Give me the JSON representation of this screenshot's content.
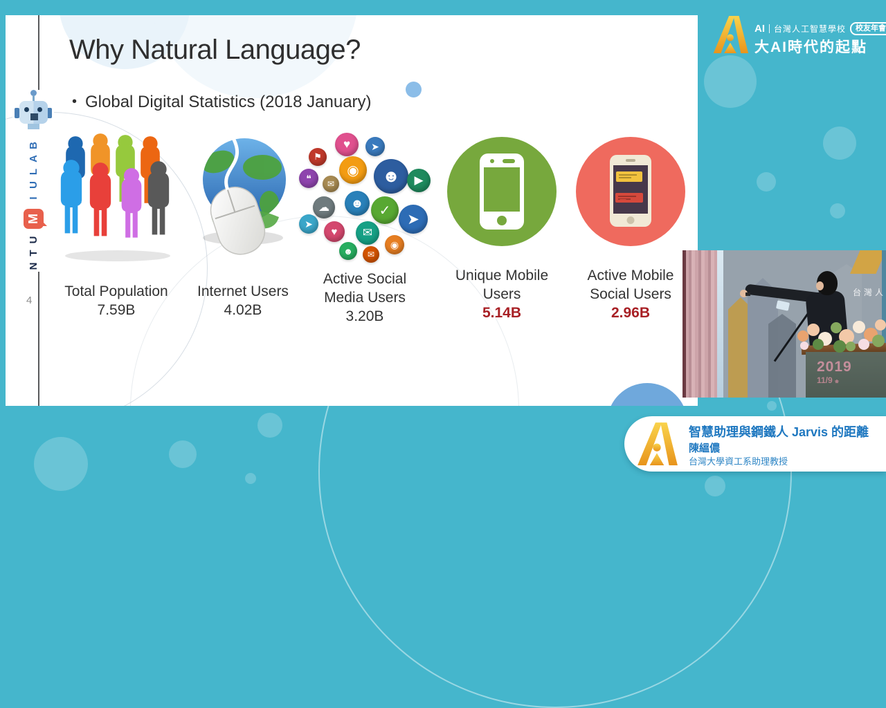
{
  "slide": {
    "title": "Why Natural Language?",
    "bullet": "Global Digital Statistics (2018 January)",
    "bullet_marker": "•",
    "slide_number": "4",
    "stats": [
      {
        "icon": "population-people-icon",
        "label1": "Total Population",
        "label2": "",
        "value": "7.59B",
        "highlight": false
      },
      {
        "icon": "internet-globe-mouse-icon",
        "label1": "Internet Users",
        "label2": "",
        "value": "4.02B",
        "highlight": false
      },
      {
        "icon": "social-media-bubbles-icon",
        "label1": "Active Social",
        "label2": "Media Users",
        "value": "3.20B",
        "highlight": false
      },
      {
        "icon": "mobile-phone-green-icon",
        "label1": "Unique Mobile",
        "label2": "Users",
        "value": "5.14B",
        "highlight": true
      },
      {
        "icon": "mobile-social-red-icon",
        "label1": "Active Mobile",
        "label2": "Social Users",
        "value": "2.96B",
        "highlight": true
      }
    ]
  },
  "sidebar": {
    "university": "NTU",
    "m_mark": "M",
    "lab_name": "IULAB"
  },
  "header_logo": {
    "ai_mark": "AI",
    "school": "台灣人工智慧學校",
    "badge": "校友年會",
    "tagline": "大AI時代的起點"
  },
  "banner": {
    "talk_title": "智慧助理與鋼鐵人 Jarvis 的距離",
    "speaker": "陳縕儂",
    "affiliation": "台灣大學資工系助理教授"
  },
  "video": {
    "year": "2019",
    "date": "11/9",
    "backdrop_text": "台灣人"
  },
  "people_colors": [
    "#1e68b0",
    "#f09428",
    "#96c93d",
    "#ec6612",
    "#2b9ee8",
    "#e8403a",
    "#cf6ee4",
    "#595959"
  ],
  "social_icons": [
    {
      "name": "heart-icon",
      "glyph": "♥",
      "color": "#e0508e"
    },
    {
      "name": "bird-icon",
      "glyph": "➤",
      "color": "#3a7abd"
    },
    {
      "name": "flag-icon",
      "glyph": "⚑",
      "color": "#c0392b"
    },
    {
      "name": "rss-icon",
      "glyph": "◉",
      "color": "#f39c12"
    },
    {
      "name": "profile-icon",
      "glyph": "☻",
      "color": "#2d5d9f"
    },
    {
      "name": "chat-icon",
      "glyph": "❝",
      "color": "#8e44ad"
    },
    {
      "name": "mail-icon",
      "glyph": "✉",
      "color": "#a78a52"
    },
    {
      "name": "play-icon",
      "glyph": "▶",
      "color": "#1f8a5d"
    },
    {
      "name": "cloud-icon",
      "glyph": "☁",
      "color": "#6f7b7e"
    },
    {
      "name": "profile-icon",
      "glyph": "☻",
      "color": "#2980b9"
    },
    {
      "name": "like-icon",
      "glyph": "✓",
      "color": "#58a832"
    },
    {
      "name": "bird-icon",
      "glyph": "➤",
      "color": "#3aa6c9"
    },
    {
      "name": "bird-icon",
      "glyph": "➤",
      "color": "#2d6cb5"
    },
    {
      "name": "heart-icon",
      "glyph": "♥",
      "color": "#d4486e"
    },
    {
      "name": "mail-icon",
      "glyph": "✉",
      "color": "#16a085"
    },
    {
      "name": "camera-icon",
      "glyph": "◉",
      "color": "#e67e22"
    },
    {
      "name": "profile-icon",
      "glyph": "☻",
      "color": "#27ae60"
    },
    {
      "name": "mail-icon",
      "glyph": "✉",
      "color": "#d35400"
    }
  ],
  "colors": {
    "bg": "#45b6cc",
    "bubble": "rgba(255,255,255,0.20)",
    "slide_bg": "#ffffff",
    "title_text": "#2f2f2f",
    "body_text": "#333333",
    "value_red": "#a82025",
    "green_circle": "#77a83d",
    "red_circle": "#ef6a5e",
    "blue_dot": "#8bbde8",
    "half_circle": "#6fa8dc",
    "banner_blue": "#1f78c0",
    "line": "#595a5c",
    "ntu_navy": "#1c2b4a",
    "iulab_blue": "#2f6db5",
    "m_logo": "#e8604c"
  }
}
